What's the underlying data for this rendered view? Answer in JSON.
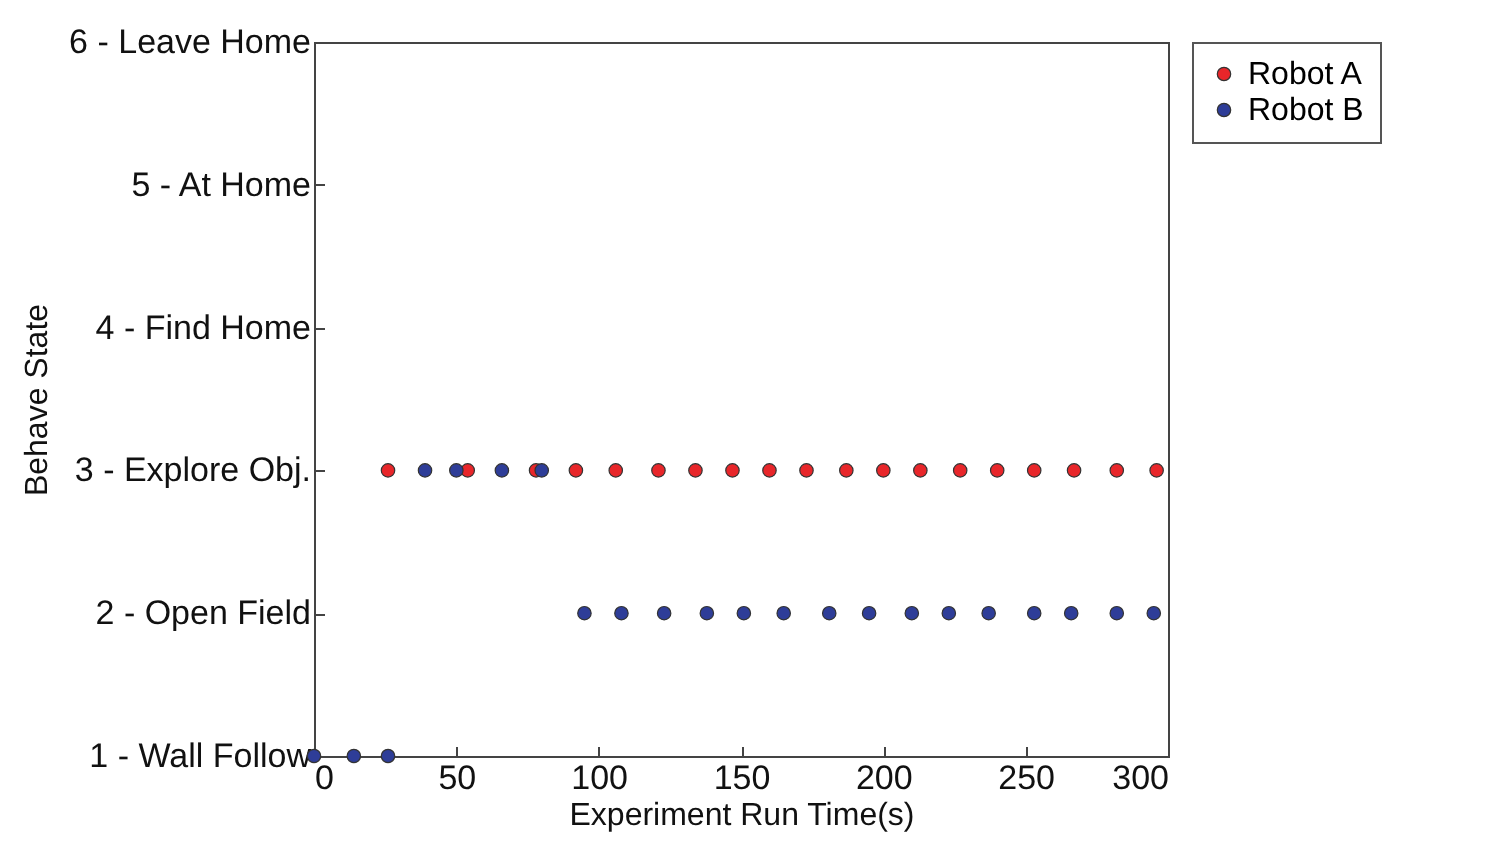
{
  "chart_data": {
    "type": "scatter",
    "xlabel": "Experiment Run Time(s)",
    "ylabel": "Behave State",
    "xlim": [
      0,
      300
    ],
    "xticks": [
      0,
      50,
      100,
      150,
      200,
      250,
      300
    ],
    "ylim": [
      1,
      6
    ],
    "yticks": [
      {
        "value": 1,
        "label": "1 - Wall Follow"
      },
      {
        "value": 2,
        "label": "2 - Open Field"
      },
      {
        "value": 3,
        "label": "3 - Explore Obj."
      },
      {
        "value": 4,
        "label": "4 - Find Home"
      },
      {
        "value": 5,
        "label": "5 - At Home"
      },
      {
        "value": 6,
        "label": "6 - Leave Home"
      }
    ],
    "marker": "circle",
    "legend": "right",
    "grid": false,
    "series": [
      {
        "name": "Robot A",
        "color": "#e8262a",
        "x": [
          26,
          54,
          78,
          92,
          106,
          121,
          134,
          147,
          160,
          173,
          187,
          200,
          213,
          227,
          240,
          253,
          267,
          282,
          296
        ],
        "values": [
          3,
          3,
          3,
          3,
          3,
          3,
          3,
          3,
          3,
          3,
          3,
          3,
          3,
          3,
          3,
          3,
          3,
          3,
          3
        ]
      },
      {
        "name": "Robot B",
        "color": "#2e3d98",
        "x": [
          0,
          14,
          26,
          39,
          50,
          66,
          80,
          95,
          108,
          123,
          138,
          151,
          165,
          181,
          195,
          210,
          223,
          237,
          253,
          266,
          282,
          295
        ],
        "values": [
          1,
          1,
          1,
          3,
          3,
          3,
          3,
          2,
          2,
          2,
          2,
          2,
          2,
          2,
          2,
          2,
          2,
          2,
          2,
          2,
          2,
          2
        ]
      }
    ]
  }
}
